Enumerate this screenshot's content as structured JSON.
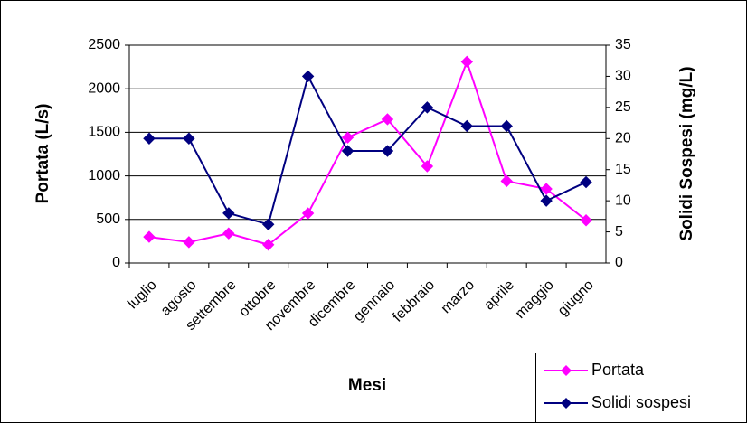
{
  "chart_data": {
    "type": "line",
    "x_label": "Mesi",
    "y_label": "Portata (L/s)",
    "y2_label": "Solidi Sospesi (mg/L)",
    "categories": [
      "luglio",
      "agosto",
      "settembre",
      "ottobre",
      "novembre",
      "dicembre",
      "gennaio",
      "febbraio",
      "marzo",
      "aprile",
      "maggio",
      "giugno"
    ],
    "series": [
      {
        "name": "Portata",
        "color": "#ff00ff",
        "values": [
          300,
          240,
          340,
          210,
          570,
          1440,
          1650,
          1110,
          2310,
          940,
          850,
          490
        ]
      },
      {
        "name": "Solidi sospesi",
        "color": "#000080",
        "axis": "y2",
        "values": [
          20,
          20,
          8,
          6.2,
          30,
          18,
          18,
          25,
          22,
          22,
          10,
          13
        ]
      }
    ],
    "ylim": [
      0,
      2500
    ],
    "yticks": [
      0,
      500,
      1000,
      1500,
      2000,
      2500
    ],
    "y2lim": [
      0,
      35
    ],
    "y2ticks": [
      0,
      5,
      10,
      15,
      20,
      25,
      30,
      35
    ],
    "grid": true,
    "legend": "lower right"
  }
}
